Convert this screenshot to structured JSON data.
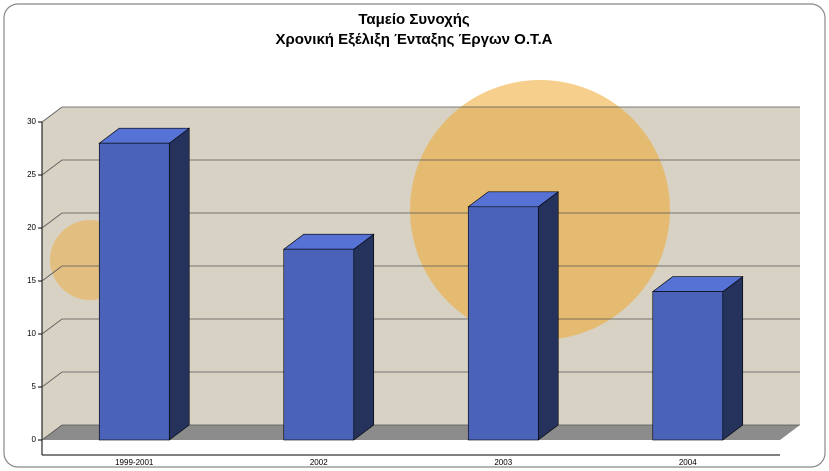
{
  "chart_data": {
    "type": "bar3d",
    "title": "Ταμείο Συνοχής",
    "subtitle": "Χρονική Εξέλιξη Ένταξης Έργων Ο.Τ.Α",
    "categories": [
      "1999-2001",
      "2002",
      "2003",
      "2004"
    ],
    "values": [
      28,
      18,
      22,
      14
    ],
    "color": "#4a63b8",
    "ylim": [
      0,
      30
    ],
    "yticks": [
      0,
      5,
      10,
      15,
      20,
      25,
      30
    ],
    "grid": true
  }
}
